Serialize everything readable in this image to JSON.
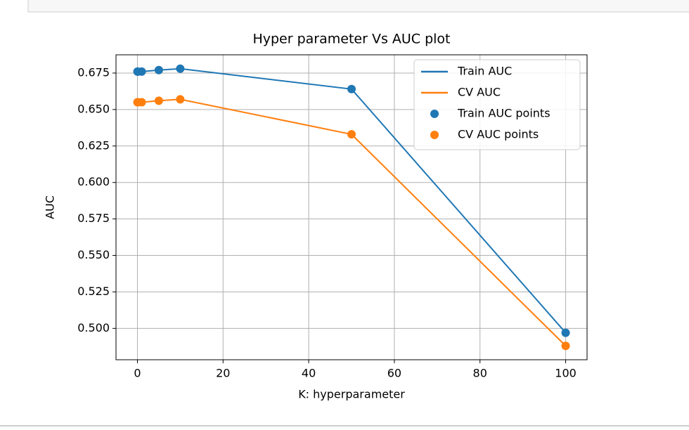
{
  "chart_data": {
    "type": "line",
    "title": "Hyper parameter Vs AUC plot",
    "x_label": "K: hyperparameter",
    "y_label": "AUC",
    "x": [
      0.01,
      0.1,
      1,
      5,
      10,
      50,
      100
    ],
    "series": [
      {
        "name": "Train AUC",
        "points_name": "Train AUC points",
        "color": "#1f77b4",
        "values": [
          0.676,
          0.676,
          0.676,
          0.677,
          0.678,
          0.664,
          0.497
        ]
      },
      {
        "name": "CV AUC",
        "points_name": "CV AUC points",
        "color": "#ff7f0e",
        "values": [
          0.655,
          0.655,
          0.655,
          0.656,
          0.657,
          0.633,
          0.488
        ]
      }
    ],
    "xlim": [
      -5,
      105
    ],
    "ylim": [
      0.4785,
      0.6875
    ],
    "xticks": [
      0,
      20,
      40,
      60,
      80,
      100
    ],
    "yticks": [
      {
        "value": 0.5,
        "label": "0.500"
      },
      {
        "value": 0.525,
        "label": "0.525"
      },
      {
        "value": 0.55,
        "label": "0.550"
      },
      {
        "value": 0.575,
        "label": "0.575"
      },
      {
        "value": 0.6,
        "label": "0.600"
      },
      {
        "value": 0.625,
        "label": "0.625"
      },
      {
        "value": 0.65,
        "label": "0.650"
      },
      {
        "value": 0.675,
        "label": "0.675"
      }
    ],
    "grid": true,
    "legend": "upper right"
  }
}
